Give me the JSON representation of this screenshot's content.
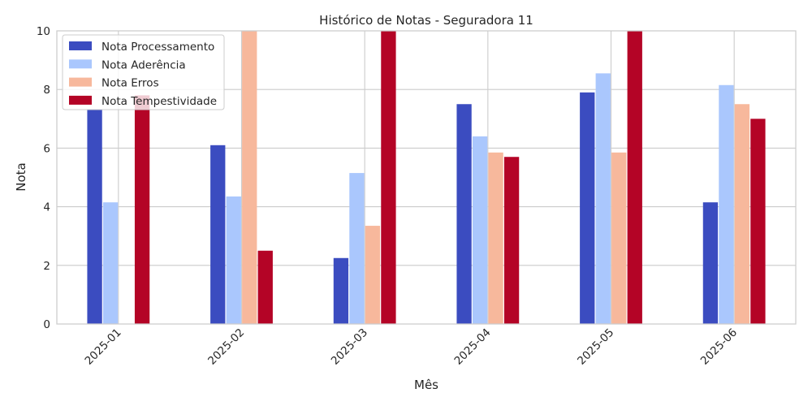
{
  "chart_data": {
    "type": "bar",
    "title": "Histórico de Notas - Seguradora 11",
    "xlabel": "Mês",
    "ylabel": "Nota",
    "ylim": [
      0,
      10
    ],
    "yticks": [
      "0",
      "2",
      "4",
      "6",
      "8",
      "10"
    ],
    "categories": [
      "2025-01",
      "2025-02",
      "2025-03",
      "2025-04",
      "2025-05",
      "2025-06"
    ],
    "grid": true,
    "legend_position": "top-left",
    "series": [
      {
        "name": "Nota Processamento",
        "color": "#3b4cc0",
        "values": [
          7.3,
          6.1,
          2.25,
          7.5,
          7.9,
          4.15
        ]
      },
      {
        "name": "Nota Aderência",
        "color": "#aac7fd",
        "values": [
          4.15,
          4.35,
          5.15,
          6.4,
          8.55,
          8.15
        ]
      },
      {
        "name": "Nota Erros",
        "color": "#f7b89c",
        "values": [
          0,
          10,
          3.35,
          5.85,
          5.85,
          7.5
        ]
      },
      {
        "name": "Nota Tempestividade",
        "color": "#b40426",
        "values": [
          7.8,
          2.5,
          10,
          5.7,
          10,
          7.0
        ]
      }
    ]
  }
}
